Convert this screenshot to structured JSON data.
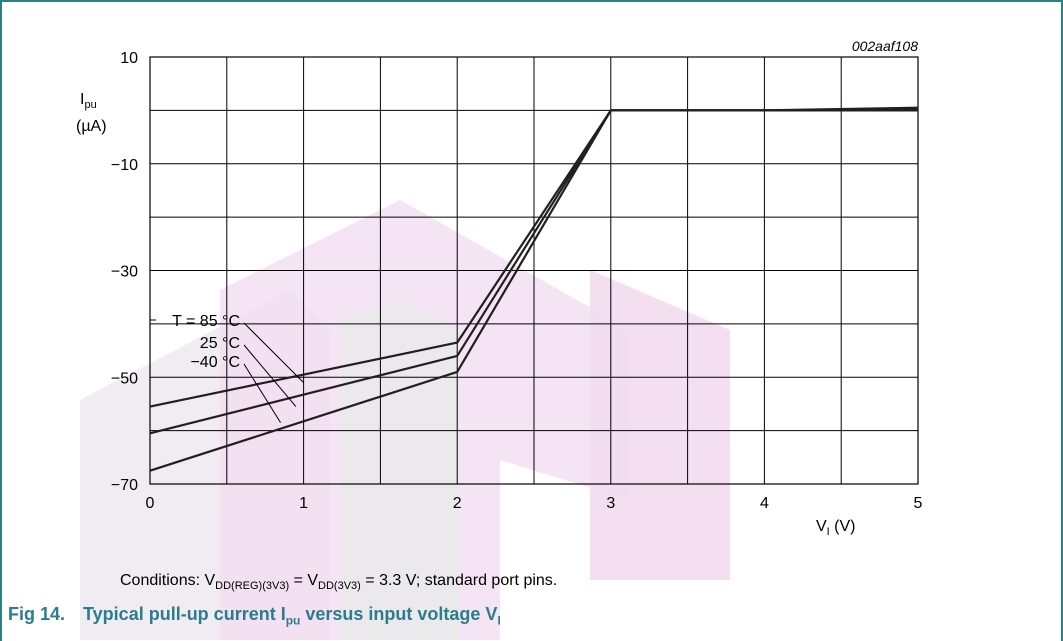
{
  "figure_code": "002aaf108",
  "conditions": {
    "prefix": "Conditions: ",
    "v1_main": "V",
    "v1_sub": "DD(REG)(3V3)",
    "equals1": " = ",
    "v2_main": "V",
    "v2_sub": "DD(3V3)",
    "suffix": " = 3.3 V; standard port pins."
  },
  "caption": {
    "number": "Fig 14.",
    "text_a": "Typical pull-up current I",
    "sub_a": "pu",
    "text_b": " versus input voltage V",
    "sub_b": "I"
  },
  "chart_data": {
    "type": "line",
    "xlabel_main": "V",
    "xlabel_sub": "I",
    "xlabel_unit": " (V)",
    "ylabel_main": "I",
    "ylabel_sub": "pu",
    "ylabel_unit": "(µA)",
    "xlim": [
      0,
      5
    ],
    "ylim": [
      -70,
      10
    ],
    "x_ticks": [
      "0",
      "1",
      "2",
      "3",
      "4",
      "5"
    ],
    "y_ticks": [
      {
        "value": 10,
        "label": "10"
      },
      {
        "value": -10,
        "label": "−10"
      },
      {
        "value": -30,
        "label": "−30"
      },
      {
        "value": -50,
        "label": "−50"
      },
      {
        "value": -70,
        "label": "−70"
      }
    ],
    "grid_x_step": 0.5,
    "grid_y_step": 10,
    "grid": true,
    "series": [
      {
        "name": "T = 85 °C",
        "points": [
          [
            0,
            -55.5
          ],
          [
            2,
            -43.5
          ],
          [
            3,
            0
          ],
          [
            4,
            0
          ],
          [
            5,
            0.5
          ]
        ],
        "label_anchor": [
          1.0,
          -51.0
        ]
      },
      {
        "name": "25 °C",
        "points": [
          [
            0,
            -60.5
          ],
          [
            2,
            -46.0
          ],
          [
            3,
            0
          ],
          [
            4,
            0
          ],
          [
            5,
            0.3
          ]
        ],
        "label_anchor": [
          0.95,
          -55.5
        ]
      },
      {
        "name": "−40 °C",
        "points": [
          [
            0,
            -67.5
          ],
          [
            2,
            -49.0
          ],
          [
            3,
            0
          ],
          [
            4,
            0
          ],
          [
            5,
            0
          ]
        ],
        "label_anchor": [
          0.85,
          -58.5
        ]
      }
    ],
    "colors": {
      "line": "#231f20",
      "grid": "#000000",
      "caption": "#2a7d8c",
      "watermark": "#f3dbf0",
      "watermark_light": "#f0eef0"
    }
  }
}
